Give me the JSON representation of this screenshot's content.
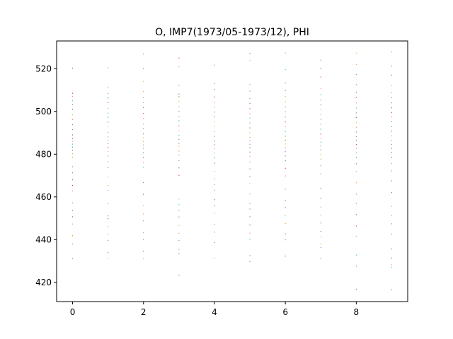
{
  "chart_data": {
    "type": "scatter",
    "title": "O, IMP7(1973/05-1973/12), PHI",
    "xlabel": "",
    "ylabel": "",
    "xlim": [
      -0.45,
      9.45
    ],
    "ylim": [
      411,
      533
    ],
    "xticks": [
      0,
      2,
      4,
      6,
      8
    ],
    "xtick_labels": [
      "0",
      "2",
      "4",
      "6",
      "8"
    ],
    "yticks": [
      420,
      440,
      460,
      480,
      500,
      520
    ],
    "ytick_labels": [
      "420",
      "440",
      "460",
      "480",
      "500",
      "520"
    ],
    "grid": false,
    "legend": "none",
    "marker": "tiny dots",
    "colors": [
      "#1f77b4",
      "#ff7f0e",
      "#2ca02c",
      "#d62728",
      "#9467bd",
      "#8c564b",
      "#e377c2",
      "#7f7f7f",
      "#bcbd22",
      "#17becf"
    ],
    "series": [
      {
        "x": 0,
        "y": [
          520.3,
          508.5,
          507.1,
          505.0,
          503.2,
          500.9,
          498.4,
          496.2,
          493.8,
          491.5,
          489.0,
          487.4,
          486.1,
          484.7,
          483.3,
          481.9,
          480.2,
          478.6,
          474.1,
          471.3,
          468.0,
          465.4,
          462.8,
          457.2,
          453.6,
          450.7,
          447.3,
          441.8,
          437.9,
          431.0
        ]
      },
      {
        "x": 1,
        "y": [
          520.5,
          511.2,
          508.4,
          506.3,
          504.1,
          501.4,
          499.2,
          497.3,
          495.0,
          492.8,
          490.2,
          488.1,
          486.5,
          485.0,
          483.2,
          481.3,
          479.1,
          476.4,
          473.8,
          469.2,
          465.3,
          463.1,
          456.9,
          451.1,
          449.8,
          446.2,
          442.4,
          439.6,
          434.0,
          431.1
        ]
      },
      {
        "x": 2,
        "y": [
          526.9,
          520.2,
          514.1,
          509.3,
          506.6,
          504.2,
          501.8,
          499.0,
          496.7,
          494.1,
          491.9,
          489.5,
          487.7,
          486.0,
          484.3,
          482.8,
          480.6,
          478.4,
          476.0,
          473.9,
          466.7,
          461.2,
          456.1,
          452.0,
          448.8,
          443.3,
          440.2,
          434.6,
          431.0
        ]
      },
      {
        "x": 3,
        "y": [
          525.0,
          520.9,
          512.3,
          508.1,
          506.9,
          504.6,
          502.2,
          500.1,
          497.7,
          495.6,
          493.2,
          490.9,
          488.8,
          486.9,
          485.1,
          483.7,
          481.5,
          479.6,
          477.0,
          473.6,
          470.1,
          459.0,
          456.4,
          453.7,
          450.6,
          446.6,
          442.9,
          439.6,
          435.5,
          433.4,
          423.3
        ]
      },
      {
        "x": 4,
        "y": [
          521.7,
          513.1,
          510.3,
          506.8,
          504.3,
          502.0,
          499.7,
          497.6,
          495.3,
          493.1,
          490.7,
          488.3,
          486.2,
          484.4,
          482.6,
          480.5,
          478.3,
          475.8,
          472.0,
          468.5,
          465.8,
          463.2,
          458.7,
          456.0,
          452.4,
          447.2,
          443.5,
          438.6,
          431.4
        ]
      },
      {
        "x": 5,
        "y": [
          527.1,
          523.8,
          512.6,
          509.5,
          506.1,
          503.8,
          501.3,
          499.0,
          496.9,
          494.6,
          492.3,
          490.1,
          487.9,
          486.3,
          484.6,
          483.0,
          481.0,
          478.9,
          476.3,
          473.1,
          469.5,
          466.2,
          461.4,
          457.0,
          454.3,
          450.7,
          446.8,
          443.0,
          440.1,
          432.5,
          429.8
        ]
      },
      {
        "x": 6,
        "y": [
          527.4,
          519.6,
          513.3,
          509.8,
          507.0,
          504.5,
          502.1,
          499.8,
          497.4,
          495.1,
          492.9,
          490.6,
          488.4,
          486.5,
          484.8,
          483.1,
          481.2,
          479.2,
          476.9,
          473.4,
          469.8,
          463.6,
          458.3,
          455.0,
          451.2,
          447.5,
          442.7,
          439.9,
          432.3
        ]
      },
      {
        "x": 7,
        "y": [
          524.0,
          520.2,
          516.1,
          510.6,
          507.8,
          505.4,
          503.1,
          500.8,
          498.6,
          496.3,
          494.0,
          491.7,
          489.4,
          487.4,
          485.6,
          483.9,
          482.0,
          480.0,
          477.7,
          474.6,
          470.8,
          464.0,
          459.3,
          455.2,
          451.5,
          447.8,
          443.9,
          441.4,
          438.0,
          436.3,
          431.1
        ]
      },
      {
        "x": 8,
        "y": [
          527.3,
          522.0,
          517.3,
          512.5,
          509.0,
          506.5,
          504.0,
          501.6,
          499.3,
          497.1,
          494.9,
          492.6,
          490.4,
          488.2,
          486.3,
          484.5,
          482.6,
          480.6,
          478.4,
          475.5,
          471.9,
          466.6,
          461.3,
          457.0,
          451.7,
          446.4,
          441.5,
          432.8,
          427.6,
          416.8
        ]
      },
      {
        "x": 9,
        "y": [
          527.9,
          521.3,
          517.0,
          512.2,
          508.8,
          506.4,
          504.0,
          501.7,
          499.5,
          497.4,
          495.2,
          493.0,
          490.8,
          488.6,
          486.5,
          484.6,
          482.7,
          480.7,
          478.4,
          475.6,
          472.2,
          467.5,
          462.0,
          455.6,
          451.3,
          447.4,
          442.6,
          435.6,
          431.4,
          428.2,
          426.9,
          416.5
        ]
      }
    ]
  }
}
